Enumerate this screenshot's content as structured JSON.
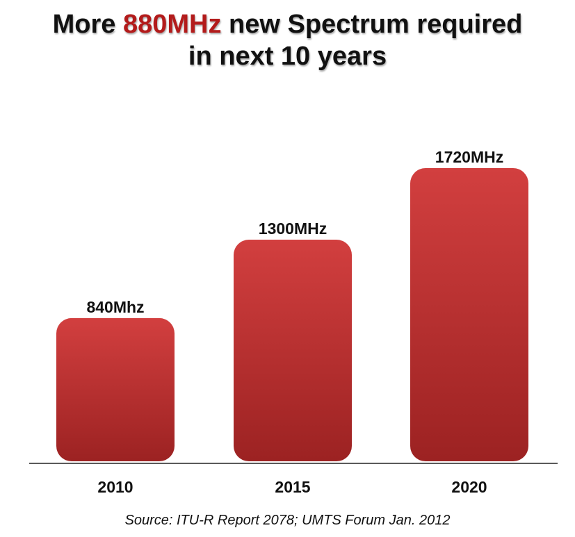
{
  "title": {
    "prefix": "More ",
    "highlight": "880MHz",
    "line1_suffix": " new Spectrum required",
    "line2": "in next 10 years"
  },
  "source": "Source: ITU-R Report 2078; UMTS Forum Jan. 2012",
  "colors": {
    "bar_top": "#d23f3f",
    "bar_bottom": "#9c2222",
    "accent": "#b31b1b",
    "text": "#111111",
    "baseline": "#222222"
  },
  "chart_data": {
    "type": "bar",
    "categories": [
      "2010",
      "2015",
      "2020"
    ],
    "values": [
      840,
      1300,
      1720
    ],
    "data_labels": [
      "840Mhz",
      "1300MHz",
      "1720MHz"
    ],
    "title": "More 880MHz new Spectrum required in next 10 years",
    "xlabel": "",
    "ylabel": "",
    "ylim": [
      0,
      1720
    ],
    "grid": false,
    "legend": "none"
  }
}
